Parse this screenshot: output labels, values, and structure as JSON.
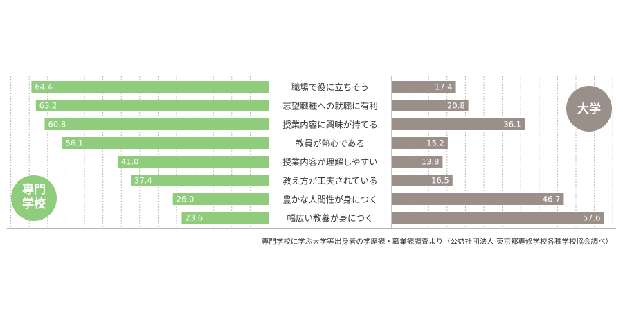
{
  "chart_data": {
    "type": "bar",
    "categories": [
      "職場で役に立ちそう",
      "志望職種への就職に有利",
      "授業内容に興味が持てる",
      "教員が熱心である",
      "授業内容が理解しやすい",
      "教え方が工夫されている",
      "豊かな人間性が身につく",
      "幅広い教養が身につく"
    ],
    "series": [
      {
        "name": "専門学校",
        "color": "#8fcc7c",
        "values": [
          64.4,
          63.2,
          60.8,
          56.1,
          41.0,
          37.4,
          26.0,
          23.6
        ]
      },
      {
        "name": "大学",
        "color": "#9b8f89",
        "values": [
          17.4,
          20.8,
          36.1,
          15.2,
          13.8,
          16.5,
          46.7,
          57.6
        ]
      }
    ],
    "legend": {
      "left_badge_line1": "専門",
      "left_badge_line2": "学校",
      "right_badge": "大学"
    },
    "value_labels": {
      "left": [
        "64.4",
        "63.2",
        "60.8",
        "56.1",
        "41.0",
        "37.4",
        "26.0",
        "23.6"
      ],
      "right": [
        "17.4",
        "20.8",
        "36.1",
        "15.2",
        "13.8",
        "16.5",
        "46.7",
        "57.6"
      ]
    },
    "source": "専門学校に学ぶ大学等出身者の学歴観・職業観調査より（公益社団法人 東京都専修学校各種学校協会調べ）",
    "grid": true
  }
}
